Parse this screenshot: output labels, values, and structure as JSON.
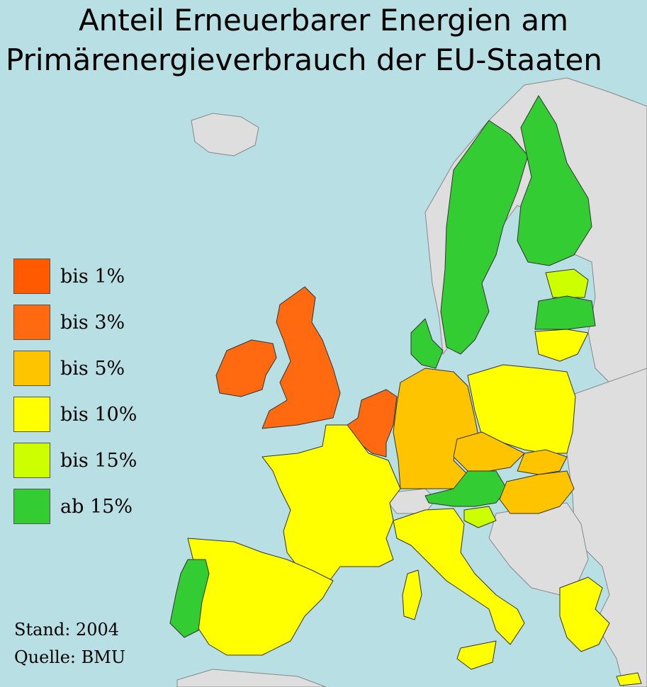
{
  "title_line1": "Anteil Erneuerbarer Energien am",
  "title_line2": "Primärenergieverbrauch der EU-Staaten",
  "legend": [
    {
      "label": "bis 1%",
      "color": "#ff5a00"
    },
    {
      "label": "bis 3%",
      "color": "#ff6a10"
    },
    {
      "label": "bis 5%",
      "color": "#ffc400"
    },
    {
      "label": "bis 10%",
      "color": "#ffff00"
    },
    {
      "label": "bis 15%",
      "color": "#ccff00"
    },
    {
      "label": "ab 15%",
      "color": "#33cc33"
    }
  ],
  "stand": "Stand: 2004",
  "quelle": "Quelle: BMU",
  "colors": {
    "sea": "#b8dfe4",
    "non_eu": "#dedede"
  }
}
